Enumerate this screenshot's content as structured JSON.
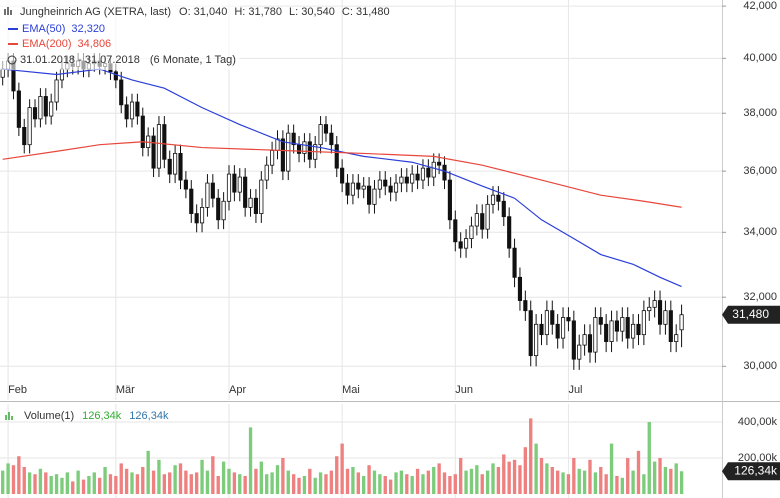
{
  "chart_data": {
    "type": "candlestick",
    "title": "Jungheinrich AG (XETRA, last)",
    "stats": [
      "O: 31,040",
      "H: 31,780",
      "L: 30,540",
      "C: 31,480"
    ],
    "period": "31.01.2018 - 31.07.2018",
    "period_note": "(6 Monate, 1 Tag)",
    "open": [
      39.3,
      39.6,
      39.9,
      38.8,
      37.5,
      36.9,
      38.2,
      37.8,
      38.6,
      37.9,
      38.4,
      39.2,
      39.6,
      39.8,
      39.7,
      39.9,
      39.6,
      39.8,
      39.9,
      39.7,
      39.8,
      39.5,
      39.2,
      38.3,
      37.8,
      38.4,
      37.9,
      36.8,
      37.2,
      36.1,
      37.6,
      36.4,
      35.9,
      36.6,
      35.7,
      35.4,
      34.6,
      34.3,
      34.8,
      35.6,
      35.1,
      34.4,
      35.0,
      35.9,
      35.3,
      35.8,
      34.8,
      35.1,
      34.6,
      35.7,
      36.2,
      36.7,
      37.1,
      36.0,
      37.3,
      36.9,
      36.6,
      37.0,
      36.4,
      36.9,
      37.6,
      37.3,
      36.9,
      36.1,
      35.6,
      35.2,
      35.6,
      35.4,
      35.5,
      34.9,
      35.4,
      35.7,
      35.5,
      35.3,
      35.6,
      35.8,
      35.6,
      35.9,
      35.7,
      36.1,
      35.8,
      36.3,
      36.2,
      35.7,
      34.4,
      33.7,
      33.5,
      33.8,
      34.2,
      34.6,
      34.1,
      34.9,
      35.2,
      35.0,
      34.5,
      33.5,
      32.6,
      31.9,
      31.6,
      30.3,
      31.2,
      30.9,
      31.6,
      31.2,
      30.8,
      31.4,
      31.3,
      30.2,
      30.6,
      30.9,
      30.4,
      31.4,
      31.2,
      30.7,
      31.3,
      31.0,
      31.4,
      30.8,
      31.2,
      30.9,
      31.6,
      31.7,
      31.9,
      31.2,
      31.6,
      30.7,
      31.04
    ],
    "high": [
      39.9,
      40.2,
      40.2,
      39.1,
      37.8,
      38.5,
      38.5,
      38.9,
      38.9,
      38.7,
      39.5,
      39.9,
      40.1,
      40.1,
      40.2,
      40.2,
      40.1,
      40.2,
      40.2,
      40.1,
      40.1,
      39.8,
      39.5,
      38.6,
      38.7,
      38.7,
      38.2,
      37.5,
      37.5,
      37.9,
      37.9,
      36.7,
      36.9,
      36.9,
      36.0,
      35.7,
      34.9,
      35.1,
      35.9,
      35.9,
      35.4,
      35.3,
      36.2,
      36.2,
      36.1,
      36.1,
      35.4,
      35.4,
      36.0,
      36.5,
      37.0,
      37.4,
      37.4,
      37.6,
      37.6,
      37.2,
      37.3,
      37.3,
      37.2,
      37.9,
      37.9,
      37.6,
      37.2,
      36.4,
      35.9,
      35.9,
      35.9,
      35.8,
      35.8,
      35.7,
      36.0,
      36.0,
      35.8,
      35.9,
      36.1,
      36.1,
      36.2,
      36.2,
      36.4,
      36.4,
      36.6,
      36.6,
      36.5,
      36.0,
      34.7,
      34.0,
      34.1,
      34.5,
      34.9,
      34.9,
      35.2,
      35.5,
      35.5,
      35.3,
      34.8,
      33.8,
      32.9,
      32.2,
      31.9,
      31.5,
      31.5,
      31.9,
      31.9,
      31.5,
      31.7,
      31.7,
      31.6,
      30.9,
      31.2,
      31.2,
      31.7,
      31.7,
      31.5,
      31.6,
      31.6,
      31.7,
      31.7,
      31.5,
      31.5,
      31.9,
      32.0,
      32.2,
      32.2,
      31.9,
      31.9,
      31.2,
      31.78
    ],
    "low": [
      39.0,
      39.3,
      38.5,
      37.2,
      36.6,
      36.6,
      37.5,
      37.5,
      37.6,
      37.6,
      38.1,
      38.9,
      39.3,
      39.4,
      39.4,
      39.3,
      39.3,
      39.5,
      39.4,
      39.4,
      39.2,
      38.9,
      38.0,
      37.5,
      37.5,
      37.6,
      36.5,
      36.5,
      35.8,
      35.8,
      36.1,
      35.6,
      35.6,
      35.4,
      35.1,
      34.3,
      34.0,
      34.0,
      34.5,
      34.8,
      34.1,
      34.1,
      34.7,
      35.0,
      35.0,
      34.5,
      34.5,
      34.3,
      34.3,
      35.4,
      35.9,
      36.4,
      35.7,
      35.7,
      36.6,
      36.3,
      36.3,
      36.1,
      36.1,
      36.6,
      37.0,
      36.6,
      35.8,
      35.3,
      34.9,
      34.9,
      35.1,
      35.1,
      34.6,
      34.6,
      35.1,
      35.2,
      35.0,
      35.0,
      35.3,
      35.3,
      35.3,
      35.4,
      35.4,
      35.5,
      35.5,
      35.9,
      35.4,
      34.1,
      33.4,
      33.2,
      33.2,
      33.5,
      33.9,
      33.8,
      33.8,
      34.6,
      34.7,
      34.2,
      33.2,
      32.3,
      31.6,
      31.3,
      30.0,
      30.0,
      30.6,
      30.6,
      30.9,
      30.5,
      30.5,
      31.0,
      29.9,
      29.9,
      30.3,
      30.1,
      30.1,
      30.9,
      30.4,
      30.4,
      30.7,
      30.7,
      30.5,
      30.5,
      30.6,
      30.6,
      31.3,
      31.4,
      30.9,
      30.9,
      30.4,
      30.4,
      30.54
    ],
    "close": [
      39.6,
      39.9,
      38.8,
      37.5,
      36.9,
      38.2,
      37.8,
      38.6,
      37.9,
      38.4,
      39.2,
      39.6,
      39.8,
      39.7,
      39.9,
      39.6,
      39.8,
      39.9,
      39.7,
      39.8,
      39.5,
      39.2,
      38.3,
      37.8,
      38.4,
      37.9,
      36.8,
      37.2,
      36.1,
      37.6,
      36.4,
      35.9,
      36.6,
      35.7,
      35.4,
      34.6,
      34.3,
      34.8,
      35.6,
      35.1,
      34.4,
      35.0,
      35.9,
      35.3,
      35.8,
      34.8,
      35.1,
      34.6,
      35.7,
      36.2,
      36.7,
      37.1,
      36.0,
      37.3,
      36.9,
      36.6,
      37.0,
      36.4,
      36.9,
      37.6,
      37.3,
      36.9,
      36.1,
      35.6,
      35.2,
      35.6,
      35.4,
      35.5,
      34.9,
      35.4,
      35.7,
      35.5,
      35.3,
      35.6,
      35.8,
      35.6,
      35.9,
      35.7,
      36.1,
      35.8,
      36.3,
      36.2,
      35.7,
      34.4,
      33.7,
      33.5,
      33.8,
      34.2,
      34.6,
      34.1,
      34.9,
      35.2,
      35.0,
      34.5,
      33.5,
      32.6,
      31.9,
      31.6,
      30.3,
      31.2,
      30.9,
      31.6,
      31.2,
      30.8,
      31.4,
      31.3,
      30.2,
      30.6,
      30.9,
      30.4,
      31.4,
      31.2,
      30.7,
      31.3,
      31.0,
      31.4,
      30.8,
      31.2,
      30.9,
      31.6,
      31.7,
      31.9,
      31.2,
      31.6,
      30.7,
      30.9,
      31.48
    ],
    "last_label": "31,480",
    "xlim": [
      -0.5,
      133.5
    ],
    "xticks": [
      {
        "value": 1,
        "label": "Feb"
      },
      {
        "value": 21,
        "label": "Mär"
      },
      {
        "value": 42,
        "label": "Apr"
      },
      {
        "value": 63,
        "label": "Mai"
      },
      {
        "value": 84,
        "label": "Jun"
      },
      {
        "value": 105,
        "label": "Jul"
      }
    ],
    "ylim": [
      29.07,
      42.24
    ],
    "log_scale": true,
    "yticks": [
      {
        "value": 42,
        "label": "42,000"
      },
      {
        "value": 40,
        "label": "40,000"
      },
      {
        "value": 38,
        "label": "38,000"
      },
      {
        "value": 36,
        "label": "36,000"
      },
      {
        "value": 34,
        "label": "34,000"
      },
      {
        "value": 32,
        "label": "32,000"
      },
      {
        "value": 30,
        "label": "30,000"
      }
    ],
    "grid": true,
    "up_color": "#ffffff",
    "down_color": "#111111",
    "lines": [
      {
        "name": "EMA(50)",
        "color": "#2b3fd8",
        "last_label": "32,320",
        "x": [
          0,
          10,
          18,
          24,
          30,
          37,
          44,
          52,
          59,
          67,
          76,
          82,
          89,
          95,
          100,
          106,
          111,
          117,
          122,
          126
        ],
        "values": [
          39.6,
          39.4,
          39.6,
          39.2,
          38.9,
          38.2,
          37.6,
          37.0,
          36.8,
          36.5,
          36.3,
          36.0,
          35.5,
          35.1,
          34.4,
          33.8,
          33.3,
          33.0,
          32.6,
          32.32
        ]
      },
      {
        "name": "EMA(200)",
        "color": "#e8473b",
        "last_label": "34,806",
        "x": [
          0,
          11,
          18,
          26,
          37,
          52,
          67,
          80,
          89,
          100,
          111,
          119,
          126
        ],
        "values": [
          36.4,
          36.7,
          36.9,
          37.0,
          36.8,
          36.7,
          36.6,
          36.5,
          36.2,
          35.7,
          35.2,
          35.0,
          34.806
        ]
      }
    ],
    "volume": {
      "name": "Volume(1)",
      "last_label": "126,34k",
      "ema_label": "126,34k",
      "up_color": "#7ccc7c",
      "down_color": "#ee8080",
      "values": [
        130,
        170,
        160,
        210,
        150,
        120,
        110,
        140,
        120,
        100,
        110,
        90,
        120,
        70,
        130,
        80,
        100,
        120,
        90,
        150,
        110,
        100,
        170,
        140,
        120,
        110,
        150,
        240,
        130,
        190,
        110,
        120,
        160,
        170,
        130,
        110,
        120,
        190,
        130,
        210,
        100,
        180,
        140,
        120,
        110,
        100,
        370,
        140,
        180,
        110,
        120,
        160,
        200,
        130,
        110,
        90,
        100,
        140,
        90,
        120,
        110,
        130,
        210,
        280,
        140,
        150,
        120,
        100,
        160,
        130,
        110,
        100,
        80,
        120,
        130,
        110,
        100,
        140,
        110,
        130,
        150,
        170,
        120,
        100,
        110,
        200,
        130,
        140,
        160,
        110,
        130,
        170,
        150,
        220,
        180,
        190,
        160,
        260,
        420,
        280,
        200,
        170,
        150,
        130,
        120,
        110,
        200,
        140,
        130,
        190,
        120,
        150,
        110,
        280,
        100,
        90,
        200,
        130,
        240,
        110,
        400,
        180,
        200,
        150,
        140,
        170,
        126.34
      ],
      "ylim": [
        0,
        500
      ],
      "yticks": [
        {
          "value": 400,
          "label": "400,00k"
        },
        {
          "value": 200,
          "label": "200,00k"
        }
      ]
    }
  }
}
